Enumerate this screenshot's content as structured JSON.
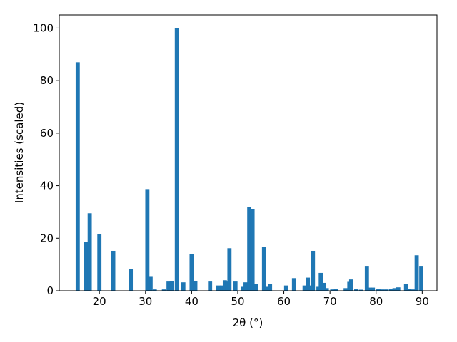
{
  "chart_data": {
    "type": "bar",
    "xlabel": "2θ (°)",
    "ylabel": "Intensities (scaled)",
    "color": "#1f77b4",
    "x": [
      15.3,
      17.1,
      17.9,
      20.0,
      23.0,
      26.8,
      30.4,
      31.1,
      32.0,
      34.0,
      35.0,
      35.7,
      36.8,
      38.2,
      40.0,
      40.8,
      44.0,
      45.8,
      46.6,
      47.2,
      47.7,
      48.2,
      49.5,
      51.2,
      51.7,
      52.5,
      53.2,
      54.0,
      55.7,
      56.2,
      57.0,
      60.5,
      62.2,
      64.5,
      65.2,
      65.7,
      66.3,
      67.5,
      68.0,
      68.7,
      69.3,
      70.5,
      71.3,
      73.4,
      74.2,
      74.6,
      75.7,
      76.7,
      78.0,
      78.6,
      79.3,
      80.5,
      81.3,
      82.2,
      83.2,
      84.0,
      84.8,
      86.5,
      87.2,
      88.0,
      88.8,
      89.8
    ],
    "values": [
      87,
      18.5,
      29.5,
      21.5,
      15.2,
      8.3,
      38.7,
      5.3,
      0.5,
      0.5,
      3.5,
      3.8,
      100,
      3.2,
      14,
      3.8,
      3.5,
      2,
      2,
      4,
      3.5,
      16.2,
      3.5,
      1.5,
      3.2,
      32,
      31,
      2.7,
      16.8,
      1.5,
      2.5,
      2,
      4.8,
      2,
      5,
      2,
      15.2,
      1.5,
      6.8,
      3,
      1,
      0.5,
      0.8,
      1,
      3.4,
      4.3,
      0.8,
      0.4,
      9.2,
      1.2,
      1.2,
      0.8,
      0.5,
      0.5,
      0.8,
      1,
      1.3,
      2.6,
      0.8,
      0.5,
      13.5,
      9.2
    ],
    "xlim": [
      11.3,
      93.2
    ],
    "ylim": [
      0,
      105
    ],
    "xticks": [
      20,
      30,
      40,
      50,
      60,
      70,
      80,
      90
    ],
    "yticks": [
      0,
      20,
      40,
      60,
      80,
      100
    ]
  }
}
